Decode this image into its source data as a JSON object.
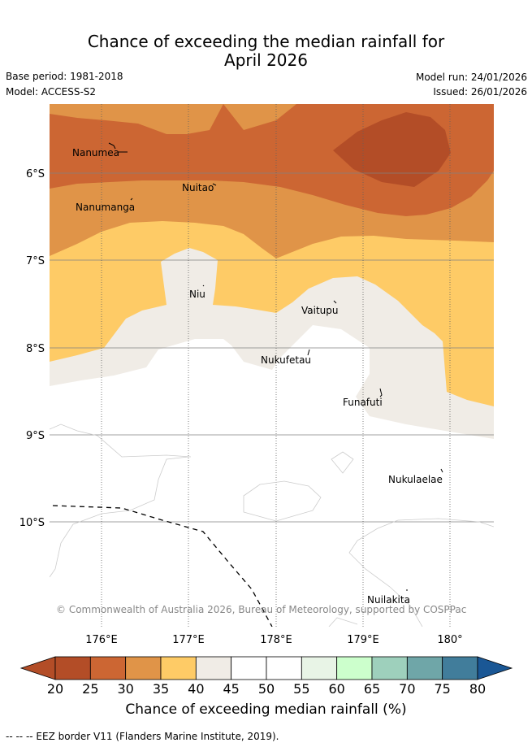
{
  "header": {
    "title_line1": "Chance of exceeding the median rainfall for",
    "title_line2": "April 2026",
    "base_period": "Base period: 1981-2018",
    "model": "Model: ACCESS-S2",
    "model_run": "Model run: 24/01/2026",
    "issued": "Issued: 26/01/2026"
  },
  "map": {
    "lat_labels": [
      "6°S",
      "7°S",
      "8°S",
      "9°S",
      "10°S"
    ],
    "lon_labels": [
      "176°E",
      "177°E",
      "178°E",
      "179°E",
      "180°"
    ],
    "places": [
      "Nanumea",
      "Nuitao",
      "Nanumanga",
      "Niu",
      "Vaitupu",
      "Nukufetau",
      "Funafuti",
      "Nukulaelae",
      "Nuilakita"
    ],
    "copyright": "© Commonwealth of Australia 2026, Bureau of Meteorology, supported by COSPPac"
  },
  "colorbar": {
    "ticks": [
      "20",
      "25",
      "30",
      "35",
      "40",
      "45",
      "50",
      "55",
      "60",
      "65",
      "70",
      "75",
      "80"
    ],
    "colors": [
      "#b34d27",
      "#cc6633",
      "#e09448",
      "#fecb66",
      "#f0ece6",
      "#ffffff",
      "#ffffff",
      "#e8f4e6",
      "#ccffcc",
      "#9ed0bc",
      "#6fa6a8",
      "#417d9b"
    ],
    "under_color": "#b34d27",
    "over_color": "#1a5795",
    "title": "Chance of exceeding median rainfall (%)"
  },
  "footer": {
    "legend": "-- -- -- EEZ border V11 (Flanders Marine Institute, 2019)."
  }
}
